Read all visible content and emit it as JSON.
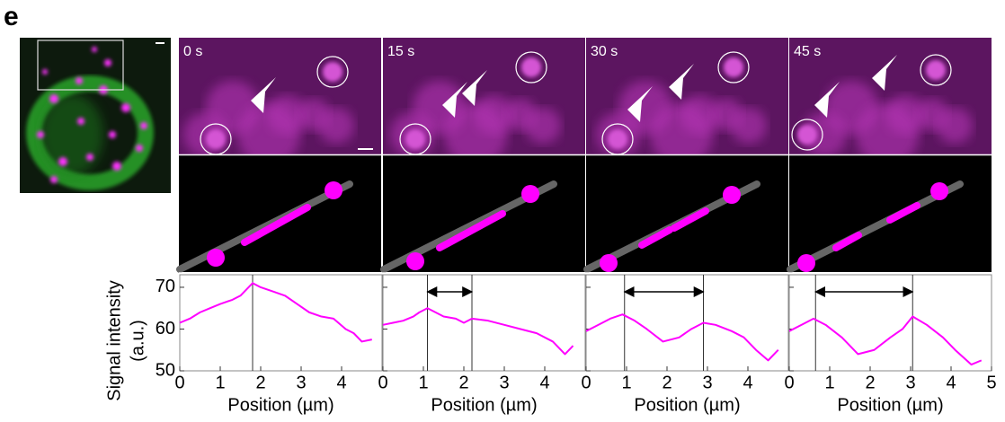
{
  "panel_label": "e",
  "frames": [
    {
      "time": "0 s"
    },
    {
      "time": "15 s"
    },
    {
      "time": "30 s"
    },
    {
      "time": "45 s"
    }
  ],
  "chart_data": [
    {
      "type": "line",
      "color": "#ff00ff",
      "xlabel": "Position (µm)",
      "ylabel": [
        "Signal intensity",
        "(a.u.)"
      ],
      "x": [
        0,
        0.25,
        0.5,
        0.75,
        1,
        1.3,
        1.5,
        1.8,
        2,
        2.3,
        2.6,
        2.9,
        3.2,
        3.5,
        3.8,
        4.1,
        4.3,
        4.5,
        4.75
      ],
      "values": [
        61.5,
        62.5,
        64,
        65,
        66,
        67,
        68,
        71,
        70,
        69,
        68,
        66,
        64,
        63,
        62.5,
        60,
        59,
        57,
        57.5
      ],
      "markers": [
        1.8
      ],
      "xlim": [
        0,
        5
      ],
      "ylim": [
        50,
        73
      ],
      "xticks": [
        0,
        1,
        2,
        3,
        4
      ],
      "yticks": [
        50,
        60,
        70
      ],
      "show_ytick_labels": true
    },
    {
      "type": "line",
      "color": "#ff00ff",
      "xlabel": "Position (µm)",
      "x": [
        0,
        0.25,
        0.5,
        0.75,
        0.9,
        1.1,
        1.5,
        1.8,
        2,
        2.2,
        2.6,
        3,
        3.4,
        3.8,
        4.2,
        4.5,
        4.7
      ],
      "values": [
        61,
        61.5,
        62,
        63,
        64,
        65,
        63,
        62.5,
        61.5,
        62.5,
        62,
        61,
        60,
        59,
        57,
        54,
        56
      ],
      "markers": [
        1.1,
        2.2
      ],
      "xlim": [
        0,
        5
      ],
      "ylim": [
        50,
        73
      ],
      "xticks": [
        0,
        1,
        2,
        3,
        4
      ],
      "yticks": [
        50,
        60,
        70
      ],
      "show_ytick_labels": false
    },
    {
      "type": "line",
      "color": "#ff00ff",
      "xlabel": "Position (µm)",
      "x": [
        0,
        0.3,
        0.6,
        0.9,
        1.2,
        1.5,
        1.9,
        2.3,
        2.6,
        2.9,
        3.2,
        3.6,
        3.9,
        4.2,
        4.5,
        4.75
      ],
      "values": [
        59.5,
        61,
        62.5,
        63.5,
        62,
        60,
        57,
        58,
        60,
        61.5,
        61,
        59.5,
        58,
        55,
        52.5,
        55
      ],
      "markers": [
        0.95,
        2.9
      ],
      "xlim": [
        0,
        5
      ],
      "ylim": [
        50,
        73
      ],
      "xticks": [
        0,
        1,
        2,
        3,
        4
      ],
      "yticks": [
        50,
        60,
        70
      ],
      "show_ytick_labels": false
    },
    {
      "type": "line",
      "color": "#ff00ff",
      "xlabel": "Position (µm)",
      "x": [
        0,
        0.3,
        0.6,
        0.9,
        1.3,
        1.7,
        2.1,
        2.5,
        2.8,
        3.05,
        3.4,
        3.8,
        4.1,
        4.5,
        4.75
      ],
      "values": [
        59.5,
        61,
        62.5,
        61,
        58,
        54,
        55,
        58,
        60,
        63,
        61,
        58,
        55,
        51.5,
        52.5
      ],
      "markers": [
        0.65,
        3.05
      ],
      "xlim": [
        0,
        5
      ],
      "ylim": [
        50,
        73
      ],
      "xticks": [
        0,
        1,
        2,
        3,
        4,
        5
      ],
      "yticks": [
        50,
        60,
        70
      ],
      "show_ytick_labels": false
    }
  ]
}
